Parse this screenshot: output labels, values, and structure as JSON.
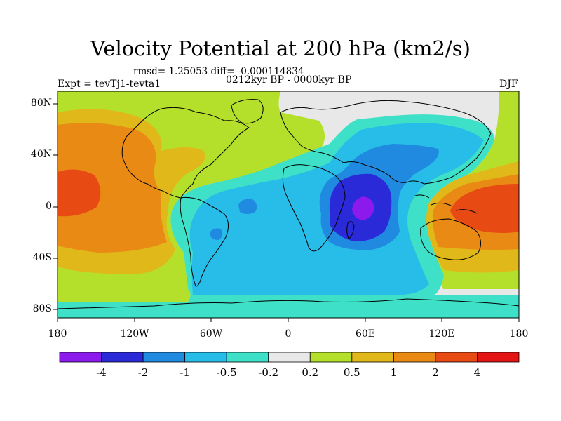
{
  "title": "Velocity Potential at 200 hPa (km2/s)",
  "subtitle_stats": "rmsd= 1.25053  diff= -0.000114834",
  "subtitle_period": "0212kyr BP - 0000kyr BP",
  "experiment": "Expt = tevTj1-tevta1",
  "season": "DJF",
  "lon_ticks": [
    "180",
    "120W",
    "60W",
    "0",
    "60E",
    "120E",
    "180"
  ],
  "lat_ticks": [
    "80N",
    "40N",
    "0",
    "40S",
    "80S"
  ],
  "colorbar": {
    "colors": [
      "#8c1aec",
      "#2a2ad8",
      "#1f8ae0",
      "#28bce8",
      "#3ee0c8",
      "#e8e8e8",
      "#b4e02c",
      "#e0b81a",
      "#e88a14",
      "#e84a14",
      "#e41414"
    ],
    "labels": [
      "-4",
      "-2",
      "-1",
      "-0.5",
      "-0.2",
      "0.2",
      "0.5",
      "1",
      "2",
      "4"
    ]
  }
}
